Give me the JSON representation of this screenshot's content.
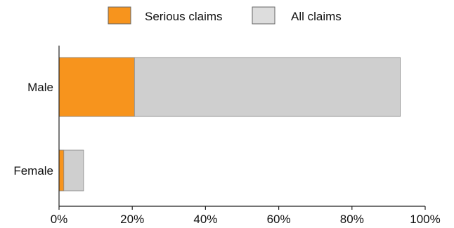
{
  "chart_data": {
    "type": "bar",
    "orientation": "horizontal",
    "stacked": false,
    "categories": [
      "Male",
      "Female"
    ],
    "series": [
      {
        "name": "All claims",
        "values": [
          93.2,
          6.7
        ],
        "color": "#cfcfcf"
      },
      {
        "name": "Serious claims",
        "values": [
          20.6,
          1.3
        ],
        "color": "#f7941d"
      }
    ],
    "xlim": [
      0,
      100
    ],
    "x_ticks": [
      0,
      20,
      40,
      60,
      80,
      100
    ],
    "x_tick_labels": [
      "0%",
      "20%",
      "40%",
      "60%",
      "80%",
      "100%"
    ],
    "title": "",
    "xlabel": "",
    "ylabel": "",
    "grid": false,
    "legend": {
      "position": "top-center",
      "items": [
        {
          "label": "Serious claims",
          "color": "#f7941d"
        },
        {
          "label": "All claims",
          "color": "#dddddd"
        }
      ]
    }
  }
}
